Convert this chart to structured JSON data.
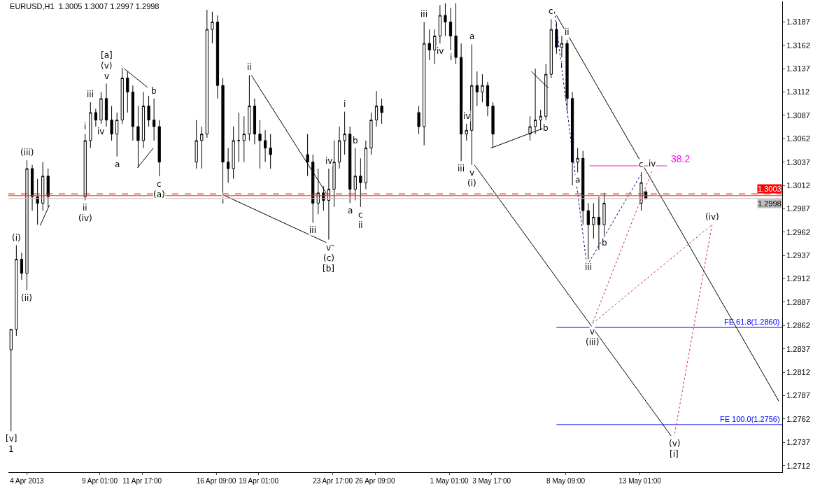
{
  "chart_data": {
    "type": "candlestick",
    "title": "EURUSD,H1  1.3005 1.3007 1.2997 1.2998",
    "color": "#000000",
    "x": [
      "2013-04-03T11:00",
      "2013-04-03T19:00",
      "2013-04-04T03:00",
      "2013-04-04T11:00",
      "2013-04-04T19:00",
      "2013-04-05T03:00",
      "2013-04-05T11:00",
      "2013-04-05T19:00",
      "2013-04-08T03:00",
      "2013-04-08T11:00",
      "2013-04-08T19:00",
      "2013-04-09T03:00",
      "2013-04-09T11:00",
      "2013-04-09T19:00",
      "2013-04-10T03:00",
      "2013-04-10T11:00",
      "2013-04-10T19:00",
      "2013-04-11T03:00",
      "2013-04-11T11:00",
      "2013-04-11T19:00",
      "2013-04-12T03:00",
      "2013-04-12T11:00",
      "2013-04-12T19:00",
      "2013-04-15T03:00",
      "2013-04-15T11:00",
      "2013-04-15T19:00",
      "2013-04-16T03:00",
      "2013-04-16T11:00",
      "2013-04-16T19:00",
      "2013-04-17T03:00",
      "2013-04-17T11:00",
      "2013-04-17T19:00",
      "2013-04-18T03:00",
      "2013-04-18T11:00",
      "2013-04-18T19:00",
      "2013-04-19T03:00",
      "2013-04-19T11:00",
      "2013-04-19T19:00",
      "2013-04-22T03:00",
      "2013-04-22T11:00",
      "2013-04-22T19:00",
      "2013-04-23T03:00",
      "2013-04-23T11:00",
      "2013-04-23T19:00",
      "2013-04-24T03:00",
      "2013-04-24T11:00",
      "2013-04-24T19:00",
      "2013-04-25T03:00",
      "2013-04-25T11:00",
      "2013-04-25T19:00",
      "2013-04-26T03:00",
      "2013-04-26T11:00",
      "2013-04-26T19:00",
      "2013-04-29T03:00",
      "2013-04-29T11:00",
      "2013-04-29T19:00",
      "2013-04-30T03:00",
      "2013-04-30T11:00",
      "2013-04-30T19:00",
      "2013-05-01T03:00",
      "2013-05-01T11:00",
      "2013-05-01T19:00",
      "2013-05-02T03:00",
      "2013-05-02T11:00",
      "2013-05-02T19:00",
      "2013-05-03T03:00",
      "2013-05-03T11:00",
      "2013-05-03T19:00",
      "2013-05-06T03:00",
      "2013-05-06T11:00",
      "2013-05-06T19:00",
      "2013-05-07T03:00",
      "2013-05-07T11:00",
      "2013-05-07T19:00",
      "2013-05-08T03:00",
      "2013-05-08T11:00",
      "2013-05-08T19:00",
      "2013-05-09T03:00",
      "2013-05-09T11:00",
      "2013-05-09T19:00",
      "2013-05-10T03:00",
      "2013-05-10T11:00",
      "2013-05-10T19:00",
      "2013-05-13T03:00",
      "2013-05-13T10:00"
    ],
    "ohlc": [
      [
        1.2836,
        1.2858,
        1.2749,
        1.2858
      ],
      [
        1.2858,
        1.2948,
        1.2851,
        1.2933
      ],
      [
        1.2933,
        1.294,
        1.2911,
        1.2918
      ],
      [
        1.2918,
        1.3039,
        1.29,
        1.303
      ],
      [
        1.303,
        1.3034,
        1.2985,
        1.3
      ],
      [
        1.3,
        1.3019,
        1.297,
        1.2993
      ],
      [
        1.2993,
        1.3037,
        1.2985,
        1.3022
      ],
      [
        1.3022,
        1.303,
        1.2989,
        1.3
      ],
      [
        1.3,
        1.3067,
        1.2996,
        1.306
      ],
      [
        1.306,
        1.3101,
        1.3052,
        1.309
      ],
      [
        1.309,
        1.3094,
        1.3075,
        1.3082
      ],
      [
        1.3082,
        1.3112,
        1.3078,
        1.3105
      ],
      [
        1.3105,
        1.3121,
        1.3075,
        1.3082
      ],
      [
        1.3082,
        1.3097,
        1.306,
        1.3067
      ],
      [
        1.3067,
        1.309,
        1.3043,
        1.3082
      ],
      [
        1.3082,
        1.3138,
        1.3078,
        1.3127
      ],
      [
        1.3127,
        1.3134,
        1.309,
        1.3112
      ],
      [
        1.3112,
        1.3119,
        1.306,
        1.3075
      ],
      [
        1.3075,
        1.3097,
        1.3031,
        1.306
      ],
      [
        1.306,
        1.3112,
        1.3052,
        1.3097
      ],
      [
        1.3097,
        1.3108,
        1.3075,
        1.3082
      ],
      [
        1.3082,
        1.3105,
        1.306,
        1.3075
      ],
      [
        1.3075,
        1.3082,
        1.3022,
        1.3037
      ],
      [
        1.3037,
        1.3082,
        1.303,
        1.306
      ],
      [
        1.306,
        1.3075,
        1.303,
        1.3067
      ],
      [
        1.3067,
        1.32,
        1.3063,
        1.3179
      ],
      [
        1.3179,
        1.3198,
        1.3164,
        1.3187
      ],
      [
        1.3187,
        1.3194,
        1.3105,
        1.3119
      ],
      [
        1.3119,
        1.3127,
        1.3004,
        1.3037
      ],
      [
        1.3037,
        1.3052,
        1.3015,
        1.303
      ],
      [
        1.303,
        1.3075,
        1.3019,
        1.306
      ],
      [
        1.306,
        1.309,
        1.3037,
        1.306
      ],
      [
        1.306,
        1.3086,
        1.3037,
        1.3067
      ],
      [
        1.3067,
        1.313,
        1.306,
        1.3097
      ],
      [
        1.3097,
        1.3105,
        1.3056,
        1.3067
      ],
      [
        1.3067,
        1.3082,
        1.303,
        1.306
      ],
      [
        1.306,
        1.3071,
        1.3037,
        1.3052
      ],
      [
        1.3052,
        1.3067,
        1.303,
        1.3045
      ],
      [
        1.3045,
        1.3067,
        1.3022,
        1.3037
      ],
      [
        1.3037,
        1.3045,
        1.2972,
        1.2993
      ],
      [
        1.2993,
        1.303,
        1.2981,
        1.3004
      ],
      [
        1.3004,
        1.3011,
        1.2985,
        1.2996
      ],
      [
        1.2996,
        1.303,
        1.2954,
        1.3008
      ],
      [
        1.3008,
        1.306,
        1.2989,
        1.3037
      ],
      [
        1.3037,
        1.3075,
        1.303,
        1.306
      ],
      [
        1.306,
        1.3091,
        1.3045,
        1.3067
      ],
      [
        1.3067,
        1.3075,
        1.2993,
        1.3008
      ],
      [
        1.3008,
        1.3052,
        1.2996,
        1.3022
      ],
      [
        1.3022,
        1.3041,
        1.2989,
        1.3015
      ],
      [
        1.3015,
        1.306,
        1.3008,
        1.3052
      ],
      [
        1.3052,
        1.309,
        1.3045,
        1.3082
      ],
      [
        1.3082,
        1.3113,
        1.3075,
        1.3097
      ],
      [
        1.3097,
        1.3105,
        1.3078,
        1.309
      ],
      [
        1.309,
        1.3097,
        1.3067,
        1.3075
      ],
      [
        1.3075,
        1.3187,
        1.3055,
        1.3164
      ],
      [
        1.3164,
        1.3179,
        1.3146,
        1.3157
      ],
      [
        1.3157,
        1.3179,
        1.3142,
        1.3172
      ],
      [
        1.3172,
        1.3205,
        1.3164,
        1.3194
      ],
      [
        1.3194,
        1.3207,
        1.3172,
        1.3187
      ],
      [
        1.3187,
        1.3202,
        1.3157,
        1.3172
      ],
      [
        1.3172,
        1.3207,
        1.3142,
        1.3149
      ],
      [
        1.3149,
        1.3164,
        1.3038,
        1.3067
      ],
      [
        1.3067,
        1.3078,
        1.306,
        1.3071
      ],
      [
        1.3071,
        1.3163,
        1.3034,
        1.3119
      ],
      [
        1.3119,
        1.3134,
        1.3097,
        1.3112
      ],
      [
        1.3112,
        1.3131,
        1.3101,
        1.3119
      ],
      [
        1.3119,
        1.3123,
        1.3086,
        1.3097
      ],
      [
        1.3097,
        1.3101,
        1.3052,
        1.3067
      ],
      [
        1.3067,
        1.3086,
        1.306,
        1.3075
      ],
      [
        1.3075,
        1.3137,
        1.3067,
        1.3082
      ],
      [
        1.3082,
        1.3093,
        1.3071,
        1.3086
      ],
      [
        1.3086,
        1.3142,
        1.3082,
        1.3131
      ],
      [
        1.3131,
        1.319,
        1.3127,
        1.3179
      ],
      [
        1.3179,
        1.3187,
        1.3153,
        1.316
      ],
      [
        1.316,
        1.3172,
        1.3149,
        1.3164
      ],
      [
        1.3164,
        1.3168,
        1.309,
        1.3105
      ],
      [
        1.3105,
        1.3112,
        1.3012,
        1.3037
      ],
      [
        1.3037,
        1.3052,
        1.3026,
        1.3041
      ],
      [
        1.3041,
        1.3049,
        1.297,
        1.2985
      ],
      [
        1.2985,
        1.2993,
        1.2933,
        1.297
      ],
      [
        1.297,
        1.2993,
        1.2955,
        1.2978
      ],
      [
        1.2978,
        1.3,
        1.2943,
        1.297
      ],
      [
        1.297,
        1.3004,
        1.2959,
        1.2993
      ],
      [
        1.2993,
        1.3026,
        1.2985,
        1.3015
      ],
      [
        1.3005,
        1.3007,
        1.2997,
        1.2998
      ]
    ],
    "series": [
      {
        "type": "line",
        "name": "FE 61.8(1.2860)",
        "color": "#0000ff",
        "line_style": "solid",
        "x": [
          "2013-05-07T19:00",
          "2013-05-22T00:00"
        ],
        "values": [
          1.286,
          1.286
        ]
      },
      {
        "type": "line",
        "name": "FE 100.0(1.2756)",
        "color": "#0000ff",
        "line_style": "solid",
        "x": [
          "2013-05-07T19:00",
          "2013-05-22T00:00"
        ],
        "values": [
          1.2756,
          1.2756
        ]
      },
      {
        "type": "line",
        "name": "38.2",
        "color": "#ff00ff",
        "line_style": "solid",
        "x": [
          "2013-05-09T21:00",
          "2013-05-14T18:00"
        ],
        "values": [
          1.3033,
          1.3033
        ]
      },
      {
        "type": "line",
        "color": "#000000",
        "line_style": "solid",
        "x": [
          "2013-05-02T15:00",
          "2013-05-15T00:00"
        ],
        "values": [
          1.3034,
          1.2744
        ]
      },
      {
        "type": "line",
        "color": "#000000",
        "line_style": "solid",
        "x": [
          "2013-05-07T19:00",
          "2013-05-21T19:00"
        ],
        "values": [
          1.3194,
          1.2781
        ]
      },
      {
        "type": "line",
        "color": "#000000",
        "line_style": "solid",
        "x": [
          "2013-04-10T14:00",
          "2013-04-12T01:00"
        ],
        "values": [
          1.3137,
          1.3117
        ]
      },
      {
        "type": "line",
        "color": "#000000",
        "line_style": "solid",
        "x": [
          "2013-04-11T10:00",
          "2013-04-12T10:00"
        ],
        "values": [
          1.3031,
          1.3052
        ]
      },
      {
        "type": "line",
        "color": "#000000",
        "line_style": "solid",
        "x": [
          "2013-04-16T19:00",
          "2013-04-23T19:00"
        ],
        "values": [
          1.3002,
          1.2947
        ]
      },
      {
        "type": "line",
        "color": "#000000",
        "line_style": "solid",
        "x": [
          "2013-04-18T14:00",
          "2013-04-23T07:00"
        ],
        "values": [
          1.313,
          1.3004
        ]
      },
      {
        "type": "line",
        "color": "#000000",
        "line_style": "solid",
        "x": [
          "2013-05-03T16:00",
          "2013-05-07T06:00"
        ],
        "values": [
          1.3052,
          1.3075
        ]
      },
      {
        "type": "line",
        "color": "#000000",
        "line_style": "solid",
        "x": [
          "2013-05-06T05:00",
          "2013-05-07T07:00"
        ],
        "values": [
          1.3134,
          1.3116
        ]
      },
      {
        "type": "line",
        "color": "#000000",
        "line_style": "solid",
        "x": [
          "2013-04-05T07:00",
          "2013-04-05T21:00"
        ],
        "values": [
          1.2969,
          1.2991
        ]
      },
      {
        "type": "line",
        "color": "#cc3333",
        "line_style": "dotted",
        "x": [
          "2013-05-13T19:00",
          "2013-05-10T01:00",
          "2013-05-17T14:00",
          "2013-05-15T05:00"
        ],
        "values": [
          1.3027,
          1.2864,
          1.297,
          1.2744
        ]
      },
      {
        "type": "line",
        "color": "#000080",
        "line_style": "dotted",
        "x": [
          "2013-05-07T16:00",
          "2013-05-09T17:00",
          "2013-05-13T02:00"
        ],
        "values": [
          1.3198,
          1.2926,
          1.3023
        ]
      }
    ],
    "annotations": [
      {
        "text": "[v]",
        "x": "2013-04-03T11:00",
        "y": 1.2749
      },
      {
        "text": "1",
        "x": "2013-04-03T11:00",
        "y": 1.2749
      },
      {
        "text": "(i)",
        "x": "2013-04-03T19:00",
        "y": 1.2948
      },
      {
        "text": "(ii)",
        "x": "2013-04-04T11:00",
        "y": 1.29
      },
      {
        "text": "(iii)",
        "x": "2013-04-04T11:00",
        "y": 1.3039
      },
      {
        "text": "ii",
        "x": "2013-04-08T03:00",
        "y": 1.2996
      },
      {
        "text": "(iv)",
        "x": "2013-04-08T03:00",
        "y": 1.2996
      },
      {
        "text": "i",
        "x": "2013-04-08T03:00",
        "y": 1.3067
      },
      {
        "text": "iii",
        "x": "2013-04-08T11:00",
        "y": 1.3101
      },
      {
        "text": "iv",
        "x": "2013-04-09T03:00",
        "y": 1.3078
      },
      {
        "text": "v",
        "x": "2013-04-09T11:00",
        "y": 1.3121
      },
      {
        "text": "(v)",
        "x": "2013-04-09T11:00",
        "y": 1.3121
      },
      {
        "text": "[a]",
        "x": "2013-04-09T11:00",
        "y": 1.3121
      },
      {
        "text": "a",
        "x": "2013-04-10T03:00",
        "y": 1.3043
      },
      {
        "text": "b",
        "x": "2013-04-12T11:00",
        "y": 1.3105
      },
      {
        "text": "c",
        "x": "2013-04-12T19:00",
        "y": 1.3022
      },
      {
        "text": "(a)",
        "x": "2013-04-12T19:00",
        "y": 1.3022
      },
      {
        "text": "i",
        "x": "2013-04-16T19:00",
        "y": 1.3004
      },
      {
        "text": "ii",
        "x": "2013-04-18T11:00",
        "y": 1.313
      },
      {
        "text": "iii",
        "x": "2013-04-22T11:00",
        "y": 1.2972
      },
      {
        "text": "iv",
        "x": "2013-04-23T11:00",
        "y": 1.303
      },
      {
        "text": "v",
        "x": "2013-04-23T11:00",
        "y": 1.2954
      },
      {
        "text": "(c)",
        "x": "2013-04-23T11:00",
        "y": 1.2954
      },
      {
        "text": "[b]",
        "x": "2013-04-23T11:00",
        "y": 1.2954
      },
      {
        "text": "i",
        "x": "2013-04-24T11:00",
        "y": 1.3091
      },
      {
        "text": "a",
        "x": "2013-04-24T19:00",
        "y": 1.2993
      },
      {
        "text": "b",
        "x": "2013-04-25T03:00",
        "y": 1.3052
      },
      {
        "text": "c",
        "x": "2013-04-25T11:00",
        "y": 1.2989
      },
      {
        "text": "ii",
        "x": "2013-04-25T11:00",
        "y": 1.2989
      },
      {
        "text": "iii",
        "x": "2013-04-29T11:00",
        "y": 1.3187
      },
      {
        "text": "iv",
        "x": "2013-04-30T11:00",
        "y": 1.3164
      },
      {
        "text": "i",
        "x": "2013-05-01T03:00",
        "y": 1.3157
      },
      {
        "text": "iii",
        "x": "2013-05-01T19:00",
        "y": 1.3038
      },
      {
        "text": "iv",
        "x": "2013-05-02T03:00",
        "y": 1.3078
      },
      {
        "text": "a",
        "x": "2013-05-02T11:00",
        "y": 1.3163
      },
      {
        "text": "v",
        "x": "2013-05-02T11:00",
        "y": 1.3034
      },
      {
        "text": "(i)",
        "x": "2013-05-02T11:00",
        "y": 1.3034
      },
      {
        "text": "b",
        "x": "2013-05-07T03:00",
        "y": 1.3082
      },
      {
        "text": "c",
        "x": "2013-05-07T11:00",
        "y": 1.319
      },
      {
        "text": "i",
        "x": "2013-05-08T03:00",
        "y": 1.3149
      },
      {
        "text": "ii",
        "x": "2013-05-08T11:00",
        "y": 1.3168
      },
      {
        "text": "a",
        "x": "2013-05-09T03:00",
        "y": 1.3026
      },
      {
        "text": "iii",
        "x": "2013-05-09T19:00",
        "y": 1.2933
      },
      {
        "text": "b",
        "x": "2013-05-10T19:00",
        "y": 1.2959
      },
      {
        "text": "c",
        "x": "2013-05-13T03:00",
        "y": 1.3026
      },
      {
        "text": "iv",
        "x": "2013-05-13T19:00",
        "y": 1.3027
      },
      {
        "text": "v",
        "x": "2013-05-10T01:00",
        "y": 1.2864
      },
      {
        "text": "(iii)",
        "x": "2013-05-10T01:00",
        "y": 1.2864
      },
      {
        "text": "(iv)",
        "x": "2013-05-17T14:00",
        "y": 1.297
      },
      {
        "text": "(v)",
        "x": "2013-05-15T05:00",
        "y": 1.2744
      },
      {
        "text": "[i]",
        "x": "2013-05-15T05:00",
        "y": 1.2744
      }
    ],
    "ref_lines": [
      {
        "axis": "y",
        "value": 1.3003,
        "label": "1.3003",
        "color": "#ff0000",
        "line_style": "dashed"
      },
      {
        "axis": "y",
        "value": 1.3001,
        "color": "#ff3300",
        "line_style": "solid"
      },
      {
        "axis": "y",
        "value": 1.2998,
        "label": "1.2998",
        "color": "#c0c0c0",
        "line_style": "solid"
      }
    ],
    "xlim": [
      "2013-04-03T07:00",
      "2013-05-22T00:00"
    ],
    "ylim": [
      1.2705,
      1.3209
    ],
    "xticks": [
      {
        "value": "2013-04-04T11:00",
        "label": "4 Apr 2013"
      },
      {
        "value": "2013-04-09T01:00",
        "label": "9 Apr 01:00"
      },
      {
        "value": "2013-04-11T17:00",
        "label": "11 Apr 17:00"
      },
      {
        "value": "2013-04-16T09:00",
        "label": "16 Apr 09:00"
      },
      {
        "value": "2013-04-19T01:00",
        "label": "19 Apr 01:00"
      },
      {
        "value": "2013-04-23T17:00",
        "label": "23 Apr 17:00"
      },
      {
        "value": "2013-04-26T09:00",
        "label": "26 Apr 09:00"
      },
      {
        "value": "2013-05-01T01:00",
        "label": "1 May 01:00"
      },
      {
        "value": "2013-05-03T17:00",
        "label": "3 May 17:00"
      },
      {
        "value": "2013-05-08T09:00",
        "label": "8 May 09:00"
      },
      {
        "value": "2013-05-13T01:00",
        "label": "13 May 01:00"
      }
    ],
    "yticks": [
      1.2712,
      1.2737,
      1.2762,
      1.2787,
      1.2812,
      1.2837,
      1.2862,
      1.2887,
      1.2912,
      1.2937,
      1.2962,
      1.2987,
      1.3012,
      1.3037,
      1.3062,
      1.3087,
      1.3112,
      1.3137,
      1.3162,
      1.3187
    ],
    "grid": false,
    "legend": false
  }
}
